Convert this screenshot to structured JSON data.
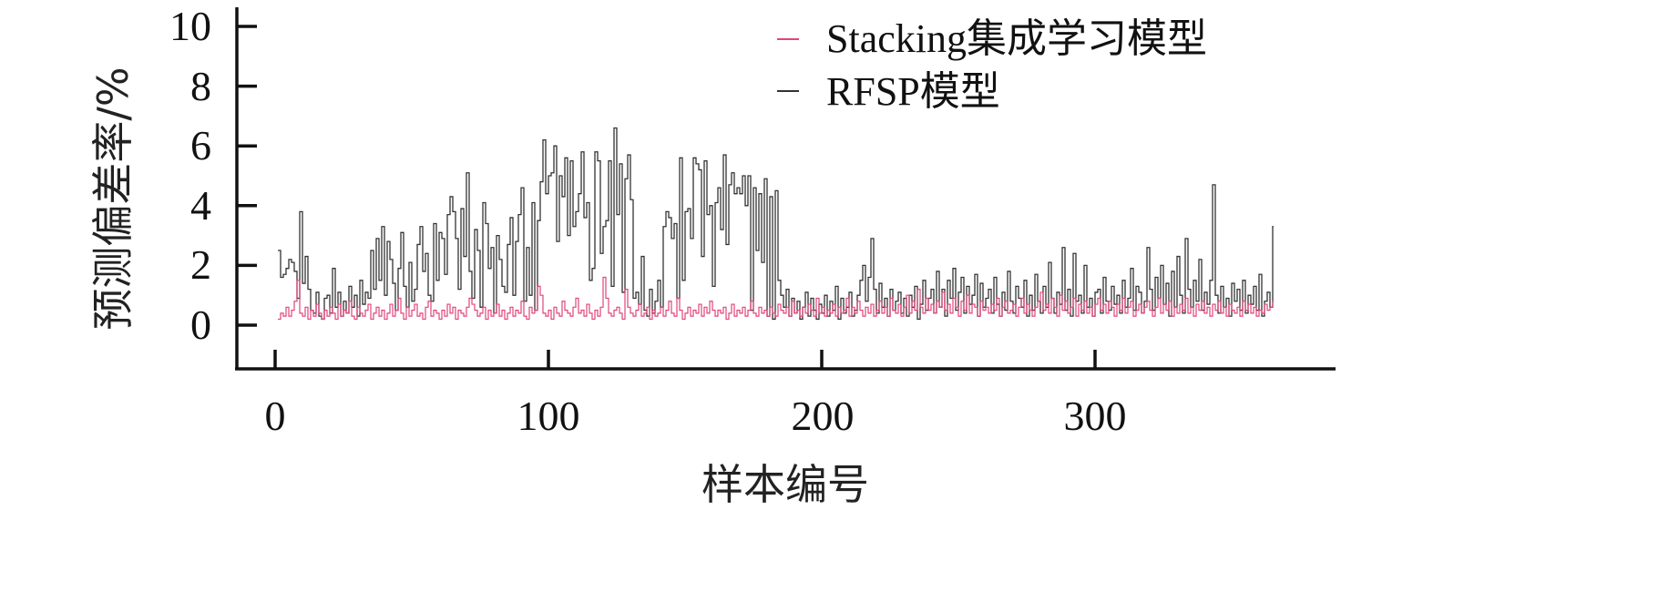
{
  "chart_data": {
    "type": "line",
    "style": "step",
    "xlabel": "样本编号",
    "ylabel": "预测偏差率/%",
    "xlim": [
      -14,
      387
    ],
    "ylim": [
      -1.46,
      10.55
    ],
    "xticks": [
      0,
      100,
      200,
      300
    ],
    "yticks": [
      0,
      2,
      4,
      6,
      8,
      10
    ],
    "grid": false,
    "legend": "top-right",
    "x_start": 1,
    "series": [
      {
        "name": "Stacking集成学习模型",
        "color": "#e0457b",
        "values": [
          0.2,
          0.4,
          0.3,
          0.6,
          0.3,
          0.5,
          0.8,
          1.5,
          0.4,
          0.3,
          0.6,
          0.2,
          0.5,
          0.3,
          0.7,
          0.4,
          0.2,
          0.5,
          0.3,
          0.6,
          0.4,
          0.2,
          0.7,
          0.3,
          0.5,
          0.4,
          0.8,
          0.3,
          0.2,
          0.6,
          0.4,
          0.3,
          0.5,
          0.7,
          0.2,
          0.4,
          0.6,
          0.3,
          0.5,
          0.2,
          0.4,
          0.7,
          0.3,
          0.5,
          0.9,
          0.4,
          0.2,
          0.6,
          0.3,
          0.5,
          0.7,
          0.3,
          0.4,
          0.2,
          0.6,
          0.8,
          0.3,
          0.5,
          0.4,
          0.2,
          0.5,
          0.3,
          0.7,
          0.4,
          0.6,
          0.2,
          0.5,
          0.4,
          0.3,
          0.6,
          0.9,
          0.7,
          0.5,
          0.3,
          0.4,
          0.6,
          0.2,
          0.5,
          0.3,
          0.4,
          0.7,
          0.3,
          0.5,
          0.2,
          0.4,
          0.6,
          0.3,
          0.5,
          0.4,
          0.8,
          0.3,
          0.2,
          0.6,
          0.4,
          0.5,
          1.3,
          1.0,
          0.4,
          0.3,
          0.5,
          0.2,
          0.6,
          0.4,
          0.3,
          0.8,
          0.5,
          0.4,
          0.3,
          0.6,
          0.9,
          0.4,
          0.5,
          0.3,
          0.7,
          0.4,
          0.2,
          0.5,
          0.3,
          0.6,
          1.6,
          0.9,
          0.4,
          0.3,
          0.5,
          0.6,
          0.4,
          0.2,
          1.2,
          0.6,
          0.4,
          0.3,
          0.5,
          0.7,
          0.3,
          0.4,
          0.6,
          0.2,
          0.5,
          0.3,
          0.4,
          0.6,
          0.3,
          0.5,
          0.8,
          0.4,
          0.3,
          0.9,
          0.5,
          0.2,
          0.4,
          0.6,
          0.3,
          0.5,
          0.4,
          0.7,
          0.3,
          0.6,
          0.4,
          0.8,
          0.5,
          0.3,
          0.5,
          0.4,
          0.6,
          0.2,
          0.4,
          0.7,
          0.3,
          0.5,
          0.4,
          0.6,
          0.3,
          0.5,
          0.8,
          0.4,
          0.3,
          0.6,
          0.4,
          0.5,
          0.3,
          0.6,
          0.4,
          0.3,
          0.7,
          0.5,
          0.4,
          0.6,
          0.3,
          0.8,
          0.4,
          0.5,
          0.3,
          0.6,
          0.4,
          0.7,
          0.5,
          0.3,
          0.9,
          0.4,
          0.6,
          0.3,
          0.5,
          0.4,
          0.7,
          0.3,
          0.6,
          0.4,
          0.5,
          0.9,
          0.3,
          0.6,
          0.4,
          0.8,
          0.5,
          0.3,
          0.6,
          0.4,
          0.7,
          0.3,
          0.5,
          0.8,
          0.4,
          0.6,
          0.3,
          0.9,
          0.5,
          0.4,
          0.7,
          0.3,
          0.6,
          1.0,
          0.4,
          0.8,
          0.5,
          1.2,
          0.6,
          0.4,
          0.9,
          0.5,
          0.7,
          0.4,
          0.8,
          0.6,
          1.1,
          0.5,
          0.7,
          0.4,
          0.9,
          0.6,
          0.3,
          0.8,
          0.5,
          1.0,
          0.4,
          0.7,
          0.6,
          0.3,
          0.8,
          0.5,
          0.6,
          0.4,
          0.7,
          0.5,
          0.9,
          0.3,
          0.6,
          0.8,
          0.4,
          0.5,
          0.7,
          0.3,
          0.6,
          0.9,
          0.4,
          0.7,
          0.5,
          0.3,
          0.6,
          0.8,
          1.1,
          0.5,
          0.7,
          0.4,
          0.9,
          0.6,
          0.3,
          1.0,
          0.5,
          0.8,
          0.4,
          0.6,
          0.9,
          0.3,
          0.7,
          0.5,
          0.8,
          0.4,
          0.6,
          0.3,
          0.7,
          0.9,
          0.5,
          0.7,
          0.4,
          0.8,
          0.6,
          0.3,
          0.7,
          0.5,
          0.9,
          0.4,
          0.6,
          0.8,
          0.3,
          0.5,
          0.7,
          0.4,
          0.6,
          0.8,
          0.5,
          0.3,
          0.6,
          0.9,
          0.4,
          0.7,
          0.5,
          0.8,
          0.3,
          0.6,
          0.4,
          0.7,
          0.5,
          0.9,
          0.4,
          0.6,
          0.3,
          0.7,
          0.5,
          0.8,
          0.4,
          0.6,
          0.3,
          0.7,
          0.5,
          0.8,
          0.4,
          0.6,
          0.3,
          0.7,
          0.5,
          0.4,
          0.6,
          0.3,
          0.8,
          0.5,
          0.7,
          0.4,
          0.6,
          0.3,
          0.5,
          0.4,
          0.7,
          0.5,
          0.6,
          0.8
        ]
      },
      {
        "name": "RFSP模型",
        "color": "#333333",
        "values": [
          2.5,
          1.6,
          1.7,
          1.9,
          2.2,
          2.1,
          1.8,
          0.9,
          3.8,
          1.4,
          2.3,
          1.2,
          0.5,
          0.4,
          1.1,
          0.3,
          0.2,
          0.9,
          1.0,
          0.4,
          1.9,
          0.6,
          1.1,
          0.3,
          0.8,
          0.4,
          1.3,
          0.6,
          1.0,
          0.3,
          1.5,
          0.7,
          1.1,
          0.9,
          2.5,
          1.2,
          2.9,
          1.5,
          3.3,
          1.0,
          2.8,
          2.2,
          1.4,
          0.5,
          1.9,
          3.1,
          1.3,
          0.6,
          2.1,
          0.8,
          1.2,
          2.7,
          3.3,
          1.8,
          2.4,
          1.0,
          0.8,
          3.4,
          1.5,
          3.1,
          2.9,
          1.7,
          3.7,
          4.3,
          3.8,
          2.9,
          1.2,
          3.9,
          2.3,
          5.1,
          1.8,
          0.9,
          3.2,
          2.5,
          0.6,
          4.1,
          3.4,
          1.9,
          2.6,
          0.4,
          3.0,
          2.2,
          1.3,
          1.1,
          2.7,
          3.6,
          1.0,
          2.8,
          3.7,
          4.6,
          0.8,
          2.6,
          1.0,
          4.1,
          0.5,
          3.5,
          4.8,
          6.2,
          4.4,
          5.0,
          5.1,
          6.0,
          2.8,
          5.0,
          4.3,
          5.6,
          3.0,
          5.5,
          3.3,
          3.8,
          4.4,
          5.8,
          3.6,
          4.1,
          1.5,
          1.9,
          5.8,
          5.5,
          2.4,
          3.3,
          3.5,
          5.5,
          1.3,
          6.6,
          3.7,
          5.4,
          1.1,
          4.9,
          5.7,
          4.2,
          0.9,
          1.1,
          0.7,
          2.3,
          0.5,
          0.3,
          1.2,
          0.4,
          0.8,
          1.5,
          0.6,
          3.3,
          3.8,
          3.6,
          2.9,
          3.4,
          0.9,
          5.6,
          1.5,
          3.8,
          3.9,
          2.9,
          5.6,
          5.4,
          5.2,
          2.3,
          5.5,
          3.7,
          4.0,
          1.3,
          4.1,
          4.6,
          3.2,
          5.7,
          2.7,
          4.7,
          5.1,
          4.4,
          4.6,
          4.4,
          5.0,
          4.0,
          5.0,
          0.5,
          4.6,
          2.5,
          4.4,
          2.1,
          4.9,
          0.3,
          4.3,
          0.2,
          4.5,
          1.5,
          1.0,
          0.6,
          1.2,
          0.3,
          0.9,
          0.4,
          0.8,
          0.2,
          0.6,
          1.1,
          0.3,
          0.9,
          0.5,
          0.2,
          0.7,
          0.4,
          1.0,
          0.3,
          0.8,
          0.5,
          1.3,
          0.2,
          0.9,
          0.4,
          0.6,
          1.1,
          0.3,
          0.5,
          1.0,
          1.5,
          2.0,
          0.8,
          1.6,
          2.9,
          1.2,
          0.4,
          1.4,
          0.6,
          0.9,
          0.3,
          1.2,
          0.5,
          0.8,
          1.1,
          0.4,
          0.9,
          0.3,
          1.0,
          0.6,
          1.3,
          0.2,
          0.7,
          1.5,
          0.5,
          0.9,
          1.2,
          0.4,
          1.8,
          0.6,
          1.2,
          0.3,
          1.5,
          0.9,
          1.9,
          0.5,
          1.1,
          1.6,
          0.4,
          1.3,
          0.7,
          1.0,
          1.7,
          0.3,
          1.4,
          0.6,
          0.9,
          1.2,
          0.4,
          1.6,
          0.7,
          0.3,
          1.1,
          0.5,
          1.8,
          0.8,
          0.4,
          1.3,
          0.9,
          0.6,
          1.5,
          0.3,
          1.0,
          0.5,
          1.7,
          0.8,
          0.4,
          1.3,
          0.6,
          2.1,
          0.9,
          0.4,
          1.1,
          0.7,
          2.6,
          0.5,
          1.2,
          0.3,
          2.4,
          0.8,
          1.0,
          0.4,
          2.0,
          0.6,
          0.9,
          0.3,
          1.1,
          1.2,
          0.4,
          1.6,
          0.8,
          0.5,
          1.3,
          0.7,
          1.0,
          0.4,
          1.5,
          0.6,
          0.9,
          1.9,
          0.5,
          1.3,
          1.1,
          0.4,
          0.8,
          2.6,
          1.2,
          0.5,
          1.6,
          0.9,
          2.0,
          0.7,
          1.4,
          0.3,
          1.8,
          0.6,
          2.3,
          1.0,
          0.4,
          2.9,
          1.2,
          0.6,
          1.5,
          0.8,
          2.2,
          0.5,
          1.1,
          0.7,
          1.5,
          4.7,
          1.0,
          0.4,
          1.3,
          0.6,
          0.9,
          0.3,
          1.4,
          0.8,
          1.2,
          0.5,
          1.5,
          0.4,
          1.0,
          0.7,
          1.3,
          0.5,
          1.7,
          0.3,
          0.8,
          1.1,
          0.6,
          3.3
        ]
      }
    ]
  },
  "labels": {
    "x_ticks": [
      "0",
      "100",
      "200",
      "300"
    ],
    "y_ticks": [
      "0",
      "2",
      "4",
      "6",
      "8",
      "10"
    ],
    "xlabel": "样本编号",
    "ylabel": "预测偏差率/%",
    "legend": [
      "Stacking集成学习模型",
      "RFSP模型"
    ]
  }
}
